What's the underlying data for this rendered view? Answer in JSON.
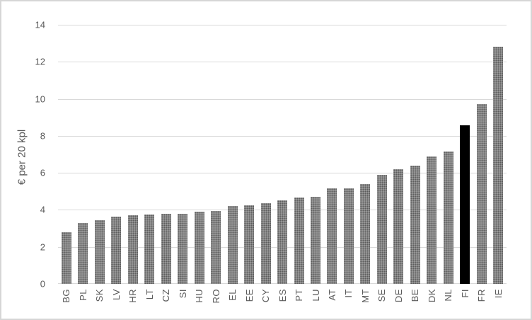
{
  "chart_data": {
    "type": "bar",
    "title": "",
    "xlabel": "",
    "ylabel": "€ per 20 kpl",
    "ylim": [
      0,
      14
    ],
    "yticks": [
      0,
      2,
      4,
      6,
      8,
      10,
      12,
      14
    ],
    "grid": "horizontal",
    "legend": "none",
    "categories": [
      "BG",
      "PL",
      "SK",
      "LV",
      "HR",
      "LT",
      "CZ",
      "SI",
      "HU",
      "RO",
      "EL",
      "EE",
      "CY",
      "ES",
      "PT",
      "LU",
      "AT",
      "IT",
      "MT",
      "SE",
      "DE",
      "BE",
      "DK",
      "NL",
      "FI",
      "FR",
      "IE"
    ],
    "values": [
      2.8,
      3.3,
      3.45,
      3.65,
      3.7,
      3.75,
      3.8,
      3.8,
      3.9,
      3.95,
      4.2,
      4.25,
      4.35,
      4.5,
      4.65,
      4.7,
      5.15,
      5.15,
      5.4,
      5.9,
      6.2,
      6.4,
      6.9,
      7.15,
      8.55,
      9.7,
      12.8
    ],
    "highlight_category": "FI",
    "colors": {
      "bar": "#868686",
      "highlight_bar": "#000000",
      "gridline": "#d9d9d9",
      "axis_text": "#595959",
      "chart_border": "#d6d6d6",
      "background": "#ffffff"
    }
  }
}
